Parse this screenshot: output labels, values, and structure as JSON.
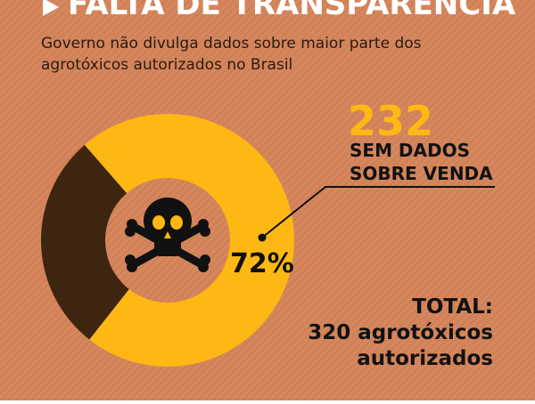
{
  "chart_data": {
    "type": "pie",
    "title": "FALTA DE TRANSPARÊNCIA",
    "subtitle": [
      "Governo não divulga dados sobre maior parte dos",
      "agrotóxicos autorizados no Brasil"
    ],
    "values": [
      72,
      28
    ],
    "value_labels": [
      "72%",
      null
    ],
    "colors": [
      "#fdb813",
      "#3e2510"
    ],
    "annotations": {
      "count": "232",
      "count_text": [
        "SEM DADOS",
        "SOBRE VENDA"
      ],
      "total": [
        "TOTAL:",
        "320 agrotóxicos",
        "autorizados"
      ]
    }
  }
}
